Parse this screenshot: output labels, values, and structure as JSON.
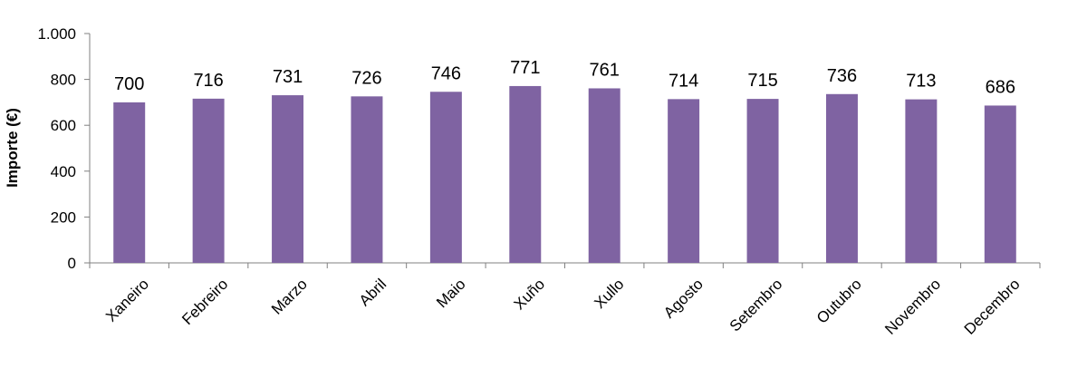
{
  "chart_data": {
    "type": "bar",
    "categories": [
      "Xaneiro",
      "Febreiro",
      "Marzo",
      "Abril",
      "Maio",
      "Xuño",
      "Xullo",
      "Agosto",
      "Setembro",
      "Outubro",
      "Novembro",
      "Decembro"
    ],
    "values": [
      700,
      716,
      731,
      726,
      746,
      771,
      761,
      714,
      715,
      736,
      713,
      686
    ],
    "data_labels": [
      "700",
      "716",
      "731",
      "726",
      "746",
      "771",
      "761",
      "714",
      "715",
      "736",
      "713",
      "686"
    ],
    "y_ticks": [
      0,
      200,
      400,
      600,
      800,
      1000
    ],
    "y_tick_labels": [
      "0",
      "200",
      "400",
      "600",
      "800",
      "1.000"
    ],
    "ylabel": "Importe (€)",
    "xlabel": "",
    "ylim": [
      0,
      1000
    ],
    "grid": false,
    "bar_color": "#7f63a2",
    "axis_color": "#808080"
  }
}
